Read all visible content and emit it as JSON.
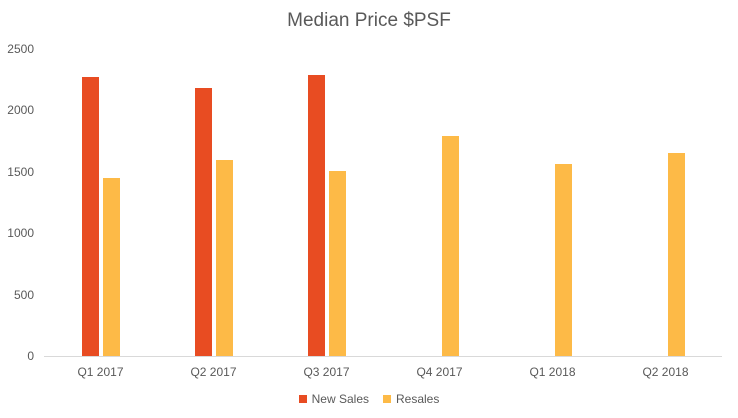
{
  "chart_data": {
    "type": "bar",
    "title": "Median Price $PSF",
    "xlabel": "",
    "ylabel": "",
    "categories": [
      "Q1 2017",
      "Q2 2017",
      "Q3 2017",
      "Q4 2017",
      "Q1 2018",
      "Q2 2018"
    ],
    "series": [
      {
        "name": "New Sales",
        "color": "#E84C22",
        "values": [
          2270,
          2180,
          2290,
          null,
          null,
          null
        ]
      },
      {
        "name": "Resales",
        "color": "#FDBA47",
        "values": [
          1450,
          1595,
          1505,
          1790,
          1560,
          1650
        ]
      }
    ],
    "ylim": [
      0,
      2500
    ],
    "yticks": [
      0,
      500,
      1000,
      1500,
      2000,
      2500
    ],
    "grid": false,
    "legend_position": "bottom"
  },
  "title": "Median Price $PSF",
  "yticks": [
    "0",
    "500",
    "1000",
    "1500",
    "2000",
    "2500"
  ],
  "categories": [
    "Q1 2017",
    "Q2 2017",
    "Q3 2017",
    "Q4 2017",
    "Q1 2018",
    "Q2 2018"
  ],
  "legend": [
    {
      "label": "New Sales",
      "color": "#E84C22"
    },
    {
      "label": "Resales",
      "color": "#FDBA47"
    }
  ]
}
